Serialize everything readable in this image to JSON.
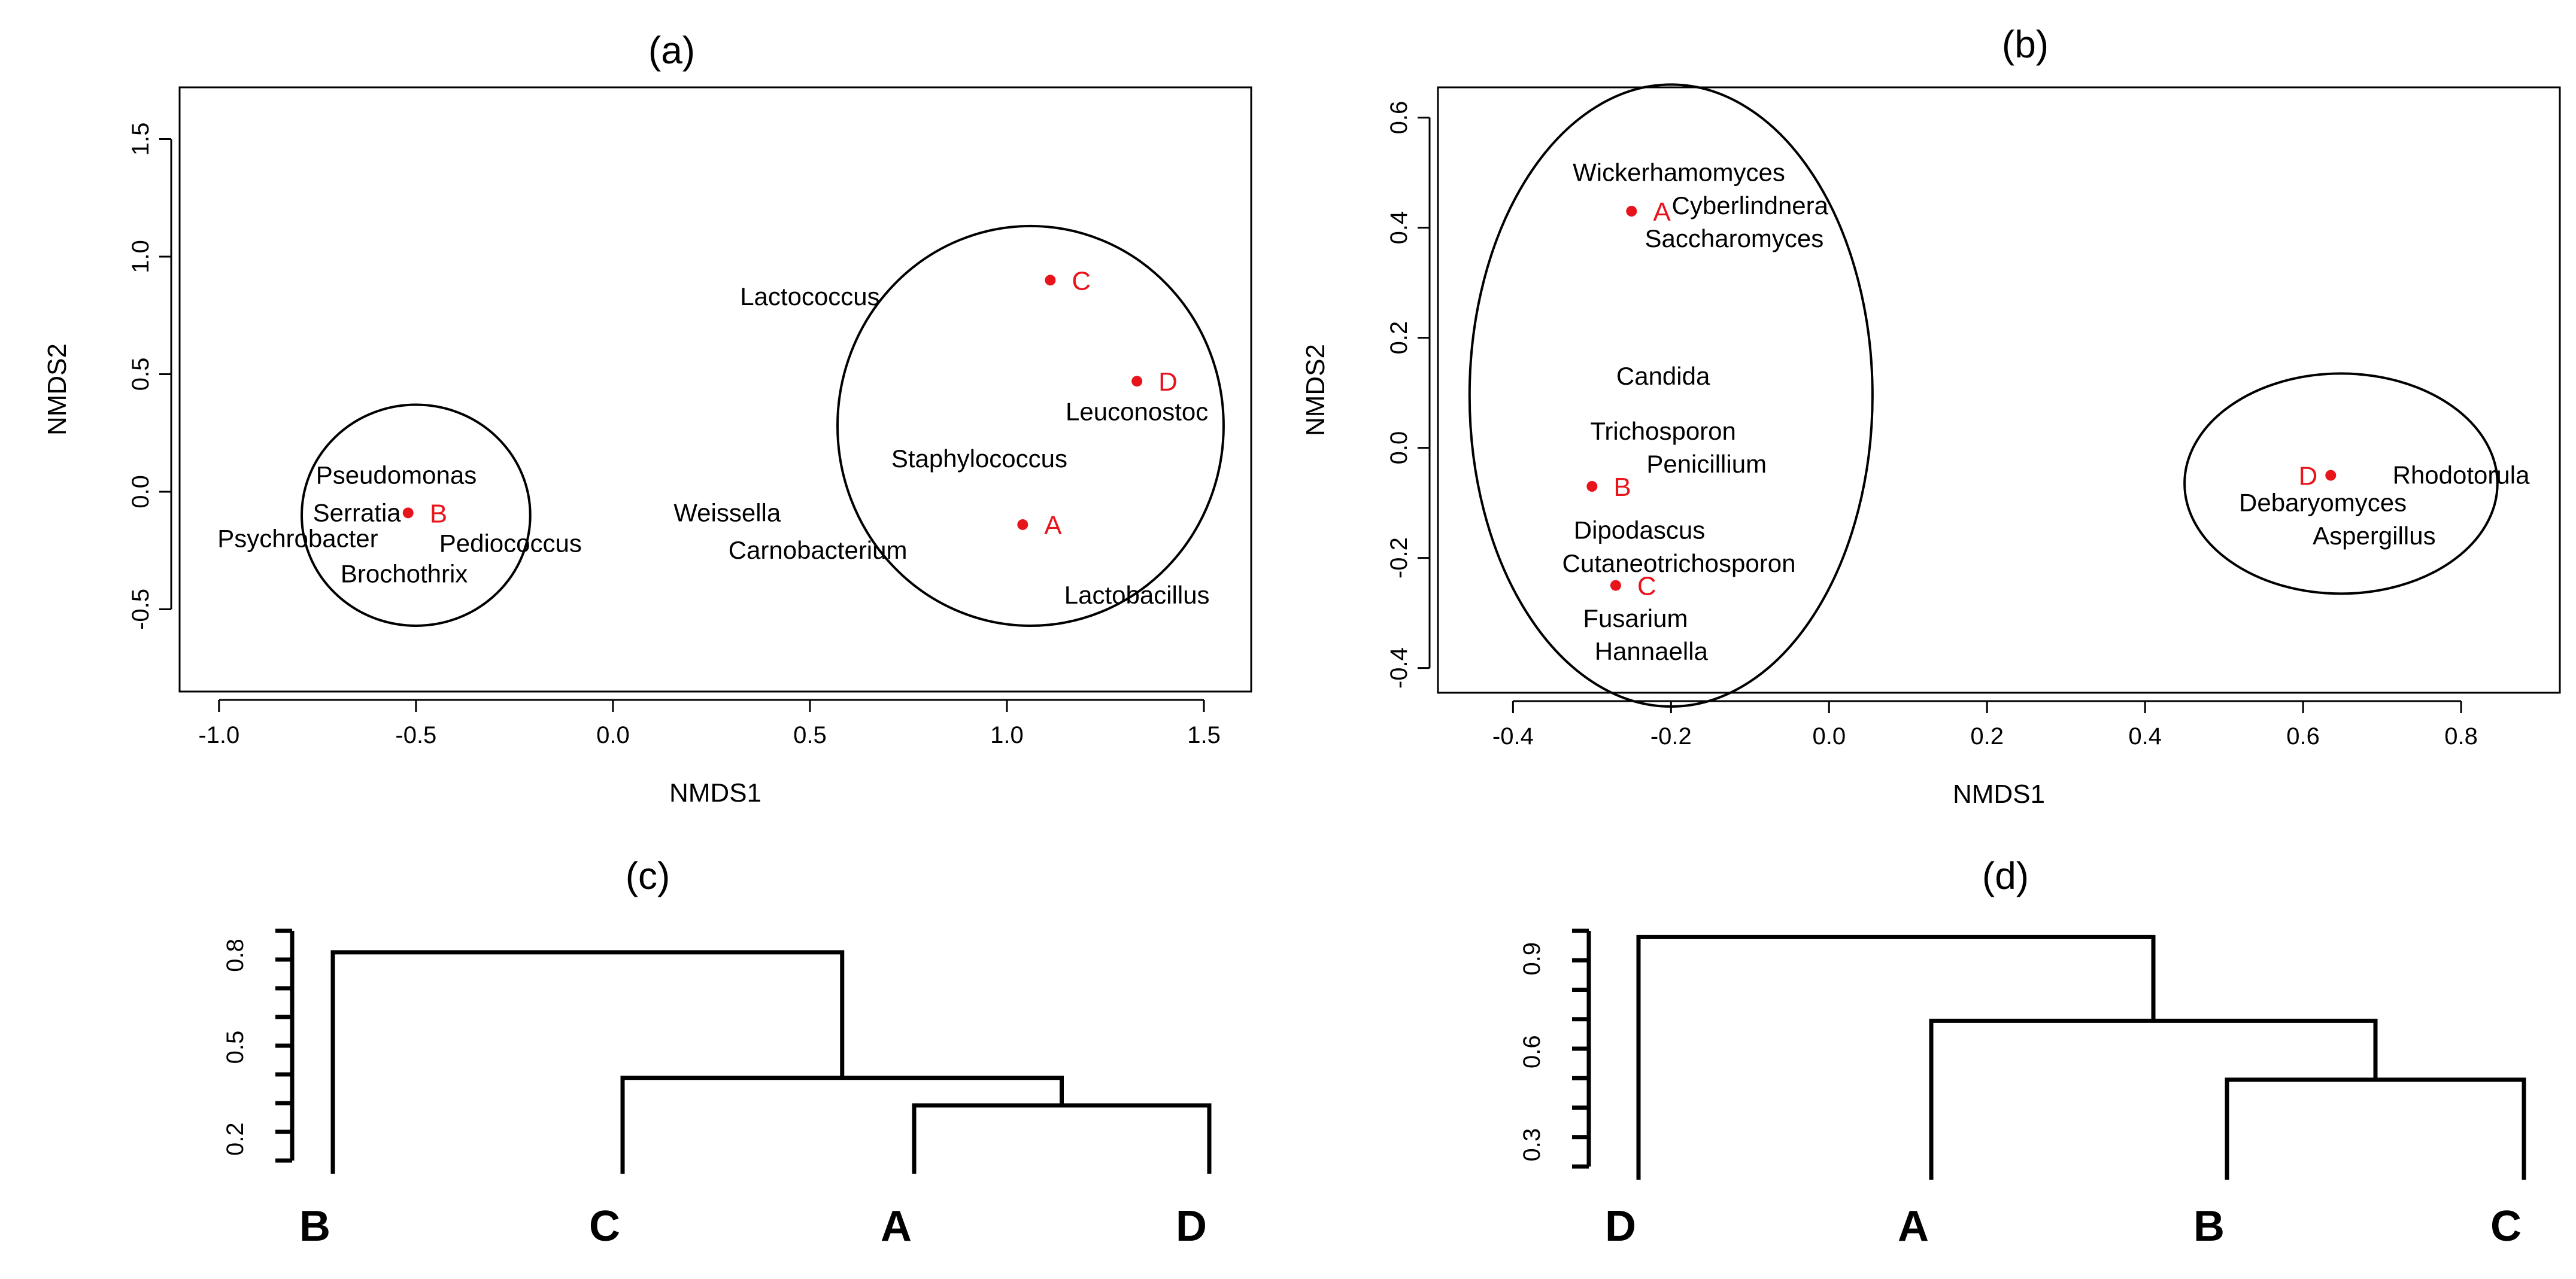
{
  "colors": {
    "sample": "#e8141c",
    "ink": "#000000"
  },
  "chart_data": [
    {
      "panel": "a",
      "type": "scatter",
      "title": "(a)",
      "xlabel": "NMDS1",
      "ylabel": "NMDS2",
      "xlim": [
        -1.1,
        1.62
      ],
      "ylim": [
        -0.85,
        1.72
      ],
      "xticks": [
        -1.0,
        -0.5,
        0.0,
        0.5,
        1.0,
        1.5
      ],
      "xtick_labels": [
        "-1.0",
        "-0.5",
        "0.0",
        "0.5",
        "1.0",
        "1.5"
      ],
      "yticks": [
        -0.5,
        0.0,
        0.5,
        1.0,
        1.5
      ],
      "ytick_labels": [
        "-0.5",
        "0.0",
        "0.5",
        "1.0",
        "1.5"
      ],
      "samples": [
        {
          "label": "C",
          "x": 1.11,
          "y": 0.9,
          "label_side": "right"
        },
        {
          "label": "D",
          "x": 1.33,
          "y": 0.47,
          "label_side": "right"
        },
        {
          "label": "B",
          "x": -0.52,
          "y": -0.09,
          "label_side": "right"
        },
        {
          "label": "A",
          "x": 1.04,
          "y": -0.14,
          "label_side": "right"
        }
      ],
      "taxa": [
        {
          "label": "Lactococcus",
          "x": 0.5,
          "y": 0.83
        },
        {
          "label": "Leuconostoc",
          "x": 1.33,
          "y": 0.34
        },
        {
          "label": "Staphylococcus",
          "x": 0.93,
          "y": 0.14
        },
        {
          "label": "Pseudomonas",
          "x": -0.55,
          "y": 0.07
        },
        {
          "label": "Serratia",
          "x": -0.65,
          "y": -0.09
        },
        {
          "label": "Psychrobacter",
          "x": -0.8,
          "y": -0.2
        },
        {
          "label": "Pediococcus",
          "x": -0.26,
          "y": -0.22
        },
        {
          "label": "Brochothrix",
          "x": -0.53,
          "y": -0.35
        },
        {
          "label": "Weissella",
          "x": 0.29,
          "y": -0.09
        },
        {
          "label": "Carnobacterium",
          "x": 0.52,
          "y": -0.25
        },
        {
          "label": "Lactobacillus",
          "x": 1.33,
          "y": -0.44
        }
      ],
      "ellipses": [
        {
          "cx": -0.5,
          "cy": -0.1,
          "rx": 0.29,
          "ry": 0.47
        },
        {
          "cx": 1.06,
          "cy": 0.28,
          "rx": 0.49,
          "ry": 0.85
        }
      ]
    },
    {
      "panel": "b",
      "type": "scatter",
      "title": "(b)",
      "xlabel": "NMDS1",
      "ylabel": "NMDS2",
      "xlim": [
        -0.495,
        0.925
      ],
      "ylim": [
        -0.445,
        0.655
      ],
      "xticks": [
        -0.4,
        -0.2,
        0.0,
        0.2,
        0.4,
        0.6,
        0.8
      ],
      "xtick_labels": [
        "-0.4",
        "-0.2",
        "0.0",
        "0.2",
        "0.4",
        "0.6",
        "0.8"
      ],
      "yticks": [
        -0.4,
        -0.2,
        0.0,
        0.2,
        0.4,
        0.6
      ],
      "ytick_labels": [
        "-0.4",
        "-0.2",
        "0.0",
        "0.2",
        "0.4",
        "0.6"
      ],
      "samples": [
        {
          "label": "A",
          "x": -0.25,
          "y": 0.43,
          "label_side": "right"
        },
        {
          "label": "B",
          "x": -0.3,
          "y": -0.07,
          "label_side": "right"
        },
        {
          "label": "C",
          "x": -0.27,
          "y": -0.25,
          "label_side": "right"
        },
        {
          "label": "D",
          "x": 0.635,
          "y": -0.05,
          "label_side": "left"
        }
      ],
      "taxa": [
        {
          "label": "Wickerhamomyces",
          "x": -0.19,
          "y": 0.5
        },
        {
          "label": "Cyberlindnera",
          "x": -0.1,
          "y": 0.44
        },
        {
          "label": "Saccharomyces",
          "x": -0.12,
          "y": 0.38
        },
        {
          "label": "Candida",
          "x": -0.21,
          "y": 0.13
        },
        {
          "label": "Trichosporon",
          "x": -0.21,
          "y": 0.03
        },
        {
          "label": "Penicillium",
          "x": -0.155,
          "y": -0.03
        },
        {
          "label": "Dipodascus",
          "x": -0.24,
          "y": -0.15
        },
        {
          "label": "Cutaneotrichosporon",
          "x": -0.19,
          "y": -0.21
        },
        {
          "label": "Fusarium",
          "x": -0.245,
          "y": -0.31
        },
        {
          "label": "Hannaella",
          "x": -0.225,
          "y": -0.37
        },
        {
          "label": "Rhodotorula",
          "x": 0.8,
          "y": -0.05
        },
        {
          "label": "Debaryomyces",
          "x": 0.625,
          "y": -0.1
        },
        {
          "label": "Aspergillus",
          "x": 0.69,
          "y": -0.16
        }
      ],
      "ellipses": [
        {
          "cx": -0.2,
          "cy": 0.095,
          "rx": 0.255,
          "ry": 0.565
        },
        {
          "cx": 0.648,
          "cy": -0.065,
          "rx": 0.198,
          "ry": 0.2
        }
      ]
    },
    {
      "panel": "c",
      "type": "dendrogram",
      "title": "(c)",
      "ylim": [
        0.13,
        0.88
      ],
      "ytick_labels": [
        {
          "label": "0.2",
          "value": 0.2
        },
        {
          "label": "0.5",
          "value": 0.5
        },
        {
          "label": "0.8",
          "value": 0.8
        }
      ],
      "leaves": [
        "B",
        "C",
        "A",
        "D"
      ],
      "merges": [
        {
          "left": "A",
          "right": "D",
          "height": 0.31
        },
        {
          "left": "C",
          "right": "AD",
          "height": 0.4
        },
        {
          "left": "B",
          "right": "CAD",
          "height": 0.81
        }
      ]
    },
    {
      "panel": "d",
      "type": "dendrogram",
      "title": "(d)",
      "ylim": [
        0.23,
        0.99
      ],
      "ytick_labels": [
        {
          "label": "0.3",
          "value": 0.3
        },
        {
          "label": "0.6",
          "value": 0.6
        },
        {
          "label": "0.9",
          "value": 0.9
        }
      ],
      "leaves": [
        "D",
        "A",
        "B",
        "C"
      ],
      "merges": [
        {
          "left": "B",
          "right": "C",
          "height": 0.51
        },
        {
          "left": "A",
          "right": "BC",
          "height": 0.7
        },
        {
          "left": "D",
          "right": "ABC",
          "height": 0.97
        }
      ]
    }
  ]
}
